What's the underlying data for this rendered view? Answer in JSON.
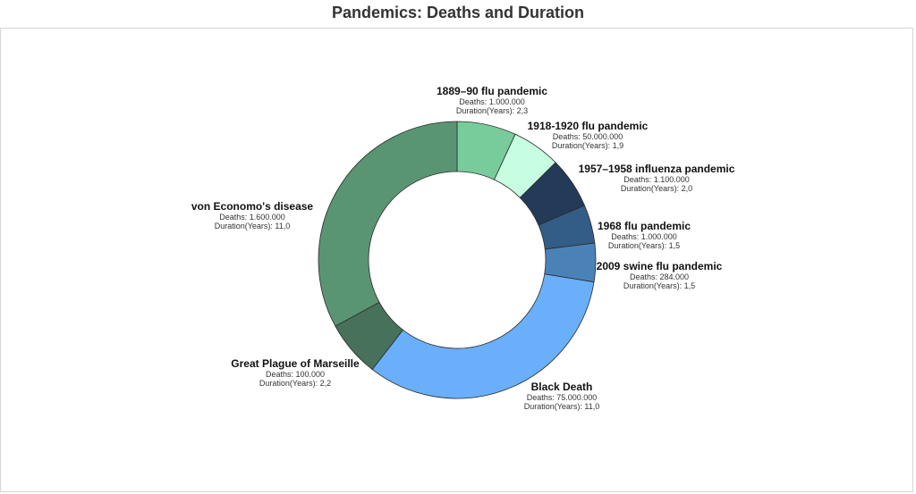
{
  "chart_data": {
    "type": "pie",
    "variant": "donut",
    "title": "Pandemics: Deaths and Duration",
    "measure": "Duration(Years)",
    "deaths_label": "Deaths",
    "duration_label": "Duration(Years)",
    "slices": [
      {
        "name": "1889–90 flu pandemic",
        "deaths": "1.000.000",
        "duration": "2,3",
        "value": 2.3,
        "color": "#78cc9b"
      },
      {
        "name": "1918-1920 flu pandemic",
        "deaths": "50.000.000",
        "duration": "1,9",
        "value": 1.9,
        "color": "#c7fde0"
      },
      {
        "name": "1957–1958 influenza pandemic",
        "deaths": "1.100.000",
        "duration": "2,0",
        "value": 2.0,
        "color": "#233a59"
      },
      {
        "name": "1968 flu pandemic",
        "deaths": "1.000.000",
        "duration": "1,5",
        "value": 1.5,
        "color": "#335c86"
      },
      {
        "name": "2009 swine flu pandemic",
        "deaths": "284.000",
        "duration": "1,5",
        "value": 1.5,
        "color": "#4a82b8"
      },
      {
        "name": "Black Death",
        "deaths": "75.000.000",
        "duration": "11,0",
        "value": 11.0,
        "color": "#6aaffa"
      },
      {
        "name": "Great Plague of Marseille",
        "deaths": "100.000",
        "duration": "2,2",
        "value": 2.2,
        "color": "#47715a"
      },
      {
        "name": "von Economo's disease",
        "deaths": "1.600.000",
        "duration": "11,0",
        "value": 11.0,
        "color": "#5a9573"
      }
    ]
  }
}
